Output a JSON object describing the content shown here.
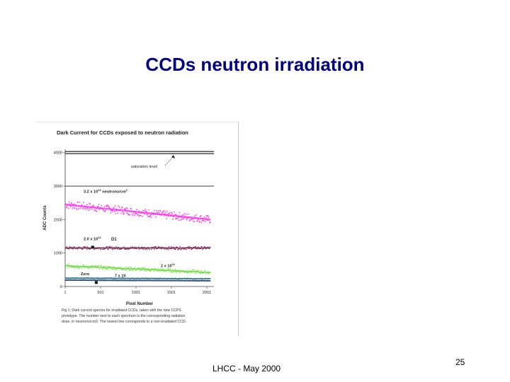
{
  "slide": {
    "title": "CCDs neutron irradiation",
    "footer": "LHCC - May 2000",
    "page_number": "25"
  },
  "colors": {
    "title": "#000080",
    "series_3_2e12": "#ff33ee",
    "series_2_0e12": "#7a1f4f",
    "series_2e12": "#66dd33",
    "series_7e10": "#3a7a8a",
    "series_zero": "#2a4a7a"
  },
  "chart_data": {
    "type": "scatter",
    "title": "Dark Current for CCDs exposed to neutron radiation",
    "xlabel": "Pixel Number",
    "ylabel": "ADC Counts",
    "xlim": [
      1,
      2101
    ],
    "ylim": [
      0,
      4100
    ],
    "x_ticks": [
      "1",
      "501",
      "1001",
      "1501",
      "2001"
    ],
    "y_ticks": [
      "0",
      "1000",
      "2000",
      "3000",
      "4000"
    ],
    "saturation_level": 4000,
    "reference_lines": [
      3000
    ],
    "series": [
      {
        "label": "3.2 x 10",
        "exp": "12",
        "unit": " neutrons/cm",
        "unit_exp": "2",
        "start": 2450,
        "end": 2000,
        "spread": 120
      },
      {
        "label": "2.0 x 10",
        "exp": "12",
        "unit": "",
        "unit_exp": "",
        "start": 1150,
        "end": 1150,
        "spread": 45
      },
      {
        "label": "2 x 10",
        "exp": "12",
        "unit": "",
        "unit_exp": "",
        "start": 620,
        "end": 420,
        "spread": 55
      },
      {
        "label": "7 x 10",
        "exp": "",
        "unit": "",
        "unit_exp": "",
        "start": 250,
        "end": 230,
        "spread": 18
      },
      {
        "label": "Zero",
        "exp": "",
        "unit": "",
        "unit_exp": "",
        "start": 190,
        "end": 170,
        "spread": 10
      }
    ],
    "annotations": {
      "saturation": "saturation level",
      "d1": "D1"
    },
    "caption": {
      "line1": "Fig 1: Dark current spectra for irradiated CCDs, taken with the new CCPS",
      "line2": "prototype. The number next to each spectrum is the corresponding radiation",
      "line3": "dose, in neutrons/cm2. The lowest line corresponds to a non-irradiated CCD."
    }
  }
}
